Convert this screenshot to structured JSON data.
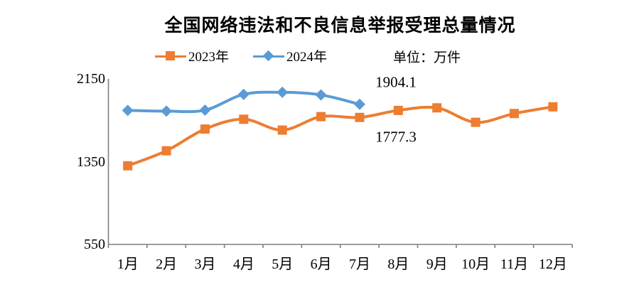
{
  "title": "全国网络违法和不良信息举报受理总量情况",
  "unit_label": "单位：万件",
  "colors": {
    "series_2023": "#ED7D31",
    "series_2024": "#5B9BD5",
    "axis": "#7F7F7F",
    "text": "#000000"
  },
  "chart_data": {
    "type": "line",
    "title": "全国网络违法和不良信息举报受理总量情况",
    "unit": "万件",
    "categories": [
      "1月",
      "2月",
      "3月",
      "4月",
      "5月",
      "6月",
      "7月",
      "8月",
      "9月",
      "10月",
      "11月",
      "12月"
    ],
    "series": [
      {
        "name": "2023年",
        "color": "#ED7D31",
        "marker": "square",
        "values": [
          1310,
          1455,
          1665,
          1760,
          1655,
          1785,
          1777.3,
          1845,
          1870,
          1730,
          1815,
          1880
        ]
      },
      {
        "name": "2024年",
        "color": "#5B9BD5",
        "marker": "diamond",
        "values": [
          1845,
          1838,
          1848,
          2000,
          2020,
          1995,
          1904.1
        ]
      }
    ],
    "annotations": [
      {
        "series": "2024年",
        "category": "7月",
        "text": "1904.1",
        "placement": "above"
      },
      {
        "series": "2023年",
        "category": "7月",
        "text": "1777.3",
        "placement": "below"
      }
    ],
    "ylim": [
      550,
      2150
    ],
    "y_ticks": [
      550,
      1350,
      2150
    ],
    "xlabel": "",
    "ylabel": "",
    "grid": false,
    "smooth_lines": true,
    "legend_position": "top"
  }
}
